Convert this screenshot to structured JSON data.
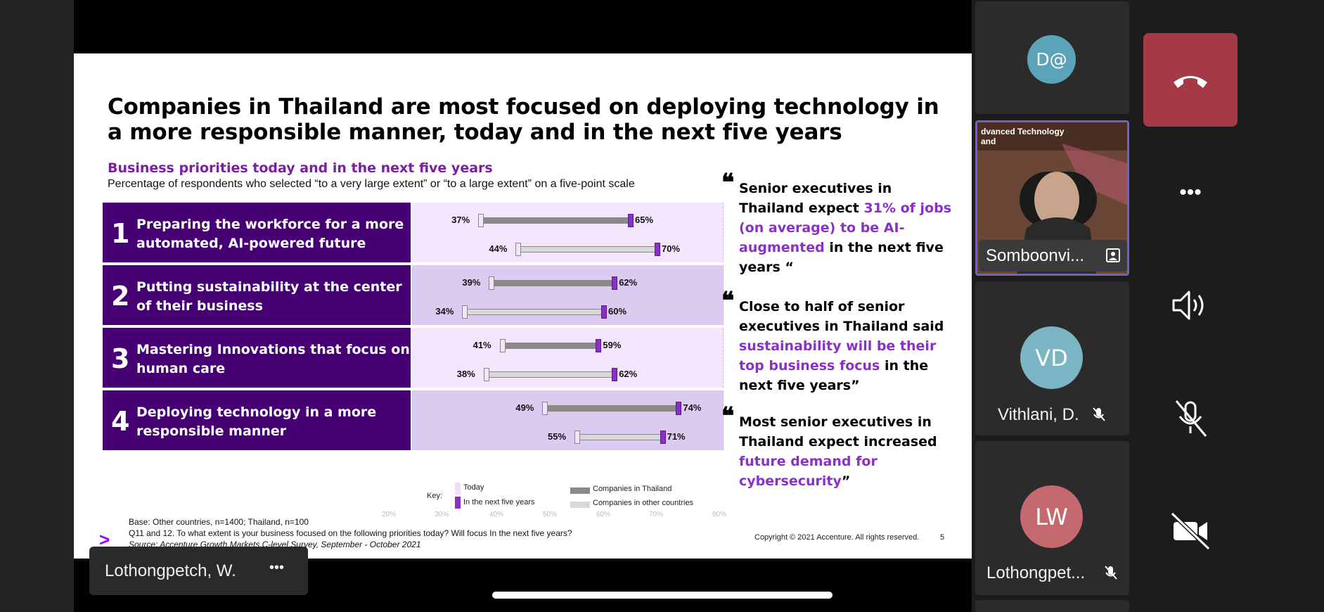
{
  "slide": {
    "title_line1": "Companies in Thailand are most focused on deploying technology in",
    "title_line2": "a more responsible manner, today and in the next five years",
    "subtitle": "Business priorities today and in the next five years",
    "description": "Percentage of respondents who selected “to a very large extent” or “to a large extent” on a five-point scale",
    "rows": [
      {
        "num": "1",
        "line1": "Preparing the workforce for a more",
        "line2": "automated, AI-powered future"
      },
      {
        "num": "2",
        "line1": "Putting sustainability at the center",
        "line2": "of their business"
      },
      {
        "num": "3",
        "line1": "Mastering Innovations that focus on",
        "line2": "human care"
      },
      {
        "num": "4",
        "line1": "Deploying technology in a more",
        "line2": "responsible manner"
      }
    ],
    "axis_ticks": [
      "20%",
      "30%",
      "40%",
      "50%",
      "60%",
      "70%",
      "80%"
    ],
    "key": {
      "label": "Key:",
      "today": "Today",
      "next": "In the next five years",
      "thailand": "Companies in Thailand",
      "other": "Companies in other countries"
    },
    "quotes": [
      {
        "pre": "Senior executives in Thailand expect ",
        "hl": "31% of jobs (on average) to be AI-augmented",
        "post": " in the next five years “"
      },
      {
        "pre": "Close to half of senior executives in Thailand said ",
        "hl": "sustainability will be their top business focus",
        "post": " in the next five years”"
      },
      {
        "pre": "Most senior executives in Thailand expect increased ",
        "hl": "future demand for cybersecurity",
        "post": "”"
      }
    ],
    "quote_mark": "❝",
    "base": "Base: Other countries, n=1400; Thailand, n=100",
    "question": "Q11 and 12. To what extent is your business focused on the following priorities today? Will focus In the next five years?",
    "source": "Source: Accenture Growth Markets C-level Survey, September - October 2021",
    "copyright": "Copyright © 2021 Accenture. All rights reserved.",
    "page_number": "5",
    "logo_glyph": ">"
  },
  "chart_data": {
    "type": "bar",
    "title": "Business priorities today and in the next five years",
    "categories": [
      "Preparing the workforce for a more automated, AI-powered future",
      "Putting sustainability at the center of their business",
      "Mastering Innovations that focus on human care",
      "Deploying technology in a more responsible manner"
    ],
    "series": [
      {
        "name": "Companies in Thailand",
        "today": [
          37,
          39,
          41,
          49
        ],
        "next_five_years": [
          65,
          62,
          59,
          74
        ]
      },
      {
        "name": "Companies in other countries",
        "today": [
          44,
          34,
          38,
          55
        ],
        "next_five_years": [
          70,
          60,
          62,
          71
        ]
      }
    ],
    "xlim": [
      20,
      80
    ],
    "unit": "%"
  },
  "presenter": {
    "name": "Lothongpetch, W.",
    "more": "•••"
  },
  "participants": [
    {
      "initials": "D@",
      "color": "#5aa3b8",
      "name": ""
    },
    {
      "video_caption_line1": "dvanced Technology",
      "video_caption_line2": "and",
      "name": "Somboonvi..."
    },
    {
      "initials": "VD",
      "color": "#79b5c3",
      "name": "Vithlani, D."
    },
    {
      "initials": "LW",
      "color": "#c5696f",
      "name": "Lothongpet..."
    }
  ],
  "controls": {
    "end_call_color": "#a33a46",
    "more": "•••"
  }
}
